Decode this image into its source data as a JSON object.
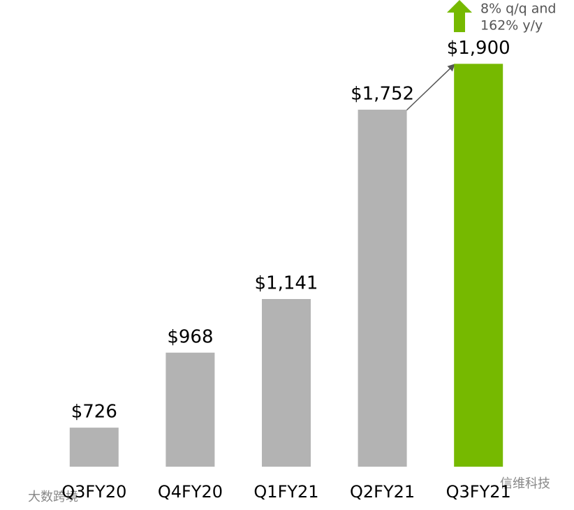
{
  "chart_data": {
    "type": "bar",
    "categories": [
      "Q3FY20",
      "Q4FY20",
      "Q1FY21",
      "Q2FY21",
      "Q3FY21"
    ],
    "values": [
      726,
      968,
      1141,
      1752,
      1900
    ],
    "value_labels": [
      "$726",
      "$968",
      "$1,141",
      "$1,752",
      "$1,900"
    ],
    "colors": [
      "#b3b3b3",
      "#b3b3b3",
      "#b3b3b3",
      "#b3b3b3",
      "#76b900"
    ],
    "ylim": [
      600,
      2000
    ],
    "annotation": [
      "8% q/q and",
      "162% y/y"
    ],
    "watermarks": [
      "大数跨境",
      "信维科技"
    ]
  }
}
